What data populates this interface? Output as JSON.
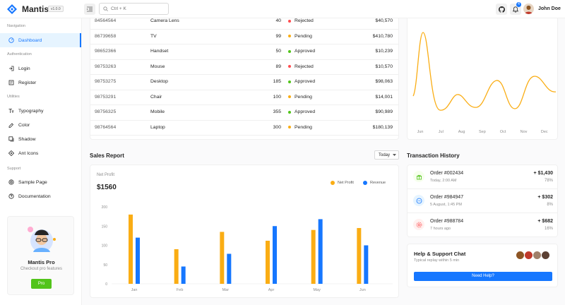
{
  "app": {
    "name": "Mantis",
    "version": "v1.0.0"
  },
  "header": {
    "search_placeholder": "Ctrl + K",
    "notifications_count": "4",
    "user_name": "John Doe"
  },
  "sidebar": {
    "groups": [
      {
        "label": "Navigation",
        "items": [
          {
            "label": "Dashboard",
            "icon": "dashboard-icon",
            "active": true
          }
        ]
      },
      {
        "label": "Authentication",
        "items": [
          {
            "label": "Login",
            "icon": "login-icon"
          },
          {
            "label": "Register",
            "icon": "register-icon"
          }
        ]
      },
      {
        "label": "Utilities",
        "items": [
          {
            "label": "Typography",
            "icon": "typography-icon"
          },
          {
            "label": "Color",
            "icon": "color-icon"
          },
          {
            "label": "Shadow",
            "icon": "shadow-icon"
          },
          {
            "label": "Ant Icons",
            "icon": "ant-icons-icon"
          }
        ]
      },
      {
        "label": "Support",
        "items": [
          {
            "label": "Sample Page",
            "icon": "sample-page-icon"
          },
          {
            "label": "Documentation",
            "icon": "documentation-icon"
          }
        ]
      }
    ],
    "promo": {
      "title": "Mantis Pro",
      "subtitle": "Checkout pro features",
      "button": "Pro"
    }
  },
  "orders": [
    {
      "id": "84564564",
      "name": "Camera Lens",
      "qty": "40",
      "status": "Rejected",
      "amount": "$40,570"
    },
    {
      "id": "86739658",
      "name": "TV",
      "qty": "99",
      "status": "Pending",
      "amount": "$410,780"
    },
    {
      "id": "98652366",
      "name": "Handset",
      "qty": "50",
      "status": "Approved",
      "amount": "$10,239"
    },
    {
      "id": "98753263",
      "name": "Mouse",
      "qty": "89",
      "status": "Rejected",
      "amount": "$10,570"
    },
    {
      "id": "98753275",
      "name": "Desktop",
      "qty": "185",
      "status": "Approved",
      "amount": "$98,063"
    },
    {
      "id": "98753291",
      "name": "Chair",
      "qty": "100",
      "status": "Pending",
      "amount": "$14,001"
    },
    {
      "id": "98756325",
      "name": "Mobile",
      "qty": "355",
      "status": "Approved",
      "amount": "$90,989"
    },
    {
      "id": "98764564",
      "name": "Laptop",
      "qty": "300",
      "status": "Pending",
      "amount": "$180,139"
    }
  ],
  "status_colors": {
    "Rejected": "#ff4d4f",
    "Pending": "#faad14",
    "Approved": "#52c41a"
  },
  "line_chart": {
    "categories": [
      "Jun",
      "Jul",
      "Aug",
      "Sep",
      "Oct",
      "Nov",
      "Dec"
    ],
    "color": "#faad14"
  },
  "sales": {
    "title": "Sales Report",
    "period": "Today",
    "net_profit_label": "Net Profit",
    "net_profit_value": "$1560"
  },
  "chart_data": {
    "type": "bar",
    "categories": [
      "Jan",
      "Feb",
      "Mar",
      "Apr",
      "May",
      "Jun"
    ],
    "series": [
      {
        "name": "Net Profit",
        "color": "#faad14",
        "values": [
          180,
          90,
          135,
          112,
          140,
          145
        ]
      },
      {
        "name": "Revenue",
        "color": "#1677ff",
        "values": [
          120,
          45,
          78,
          150,
          168,
          100
        ]
      }
    ],
    "yticks": [
      "0",
      "50",
      "100",
      "150",
      "200"
    ],
    "ylim": [
      0,
      200
    ],
    "legend": "top-right"
  },
  "transactions": {
    "title": "Transaction History",
    "items": [
      {
        "title": "Order #002434",
        "time": "Today, 2:00 AM",
        "amount": "+ $1,430",
        "pct": "78%",
        "icon": "gift-icon",
        "bg": "#f6ffed",
        "fg": "#52c41a"
      },
      {
        "title": "Order #984947",
        "time": "5 August, 1:45 PM",
        "amount": "+ $302",
        "pct": "8%",
        "icon": "message-icon",
        "bg": "#e6f4ff",
        "fg": "#1677ff"
      },
      {
        "title": "Order #988784",
        "time": "7 hours ago",
        "amount": "+ $682",
        "pct": "16%",
        "icon": "settings-icon",
        "bg": "#fff1f0",
        "fg": "#ff4d4f"
      }
    ]
  },
  "help": {
    "title": "Help & Support Chat",
    "subtitle": "Typical replay within 5 min",
    "button": "Need Help?"
  }
}
